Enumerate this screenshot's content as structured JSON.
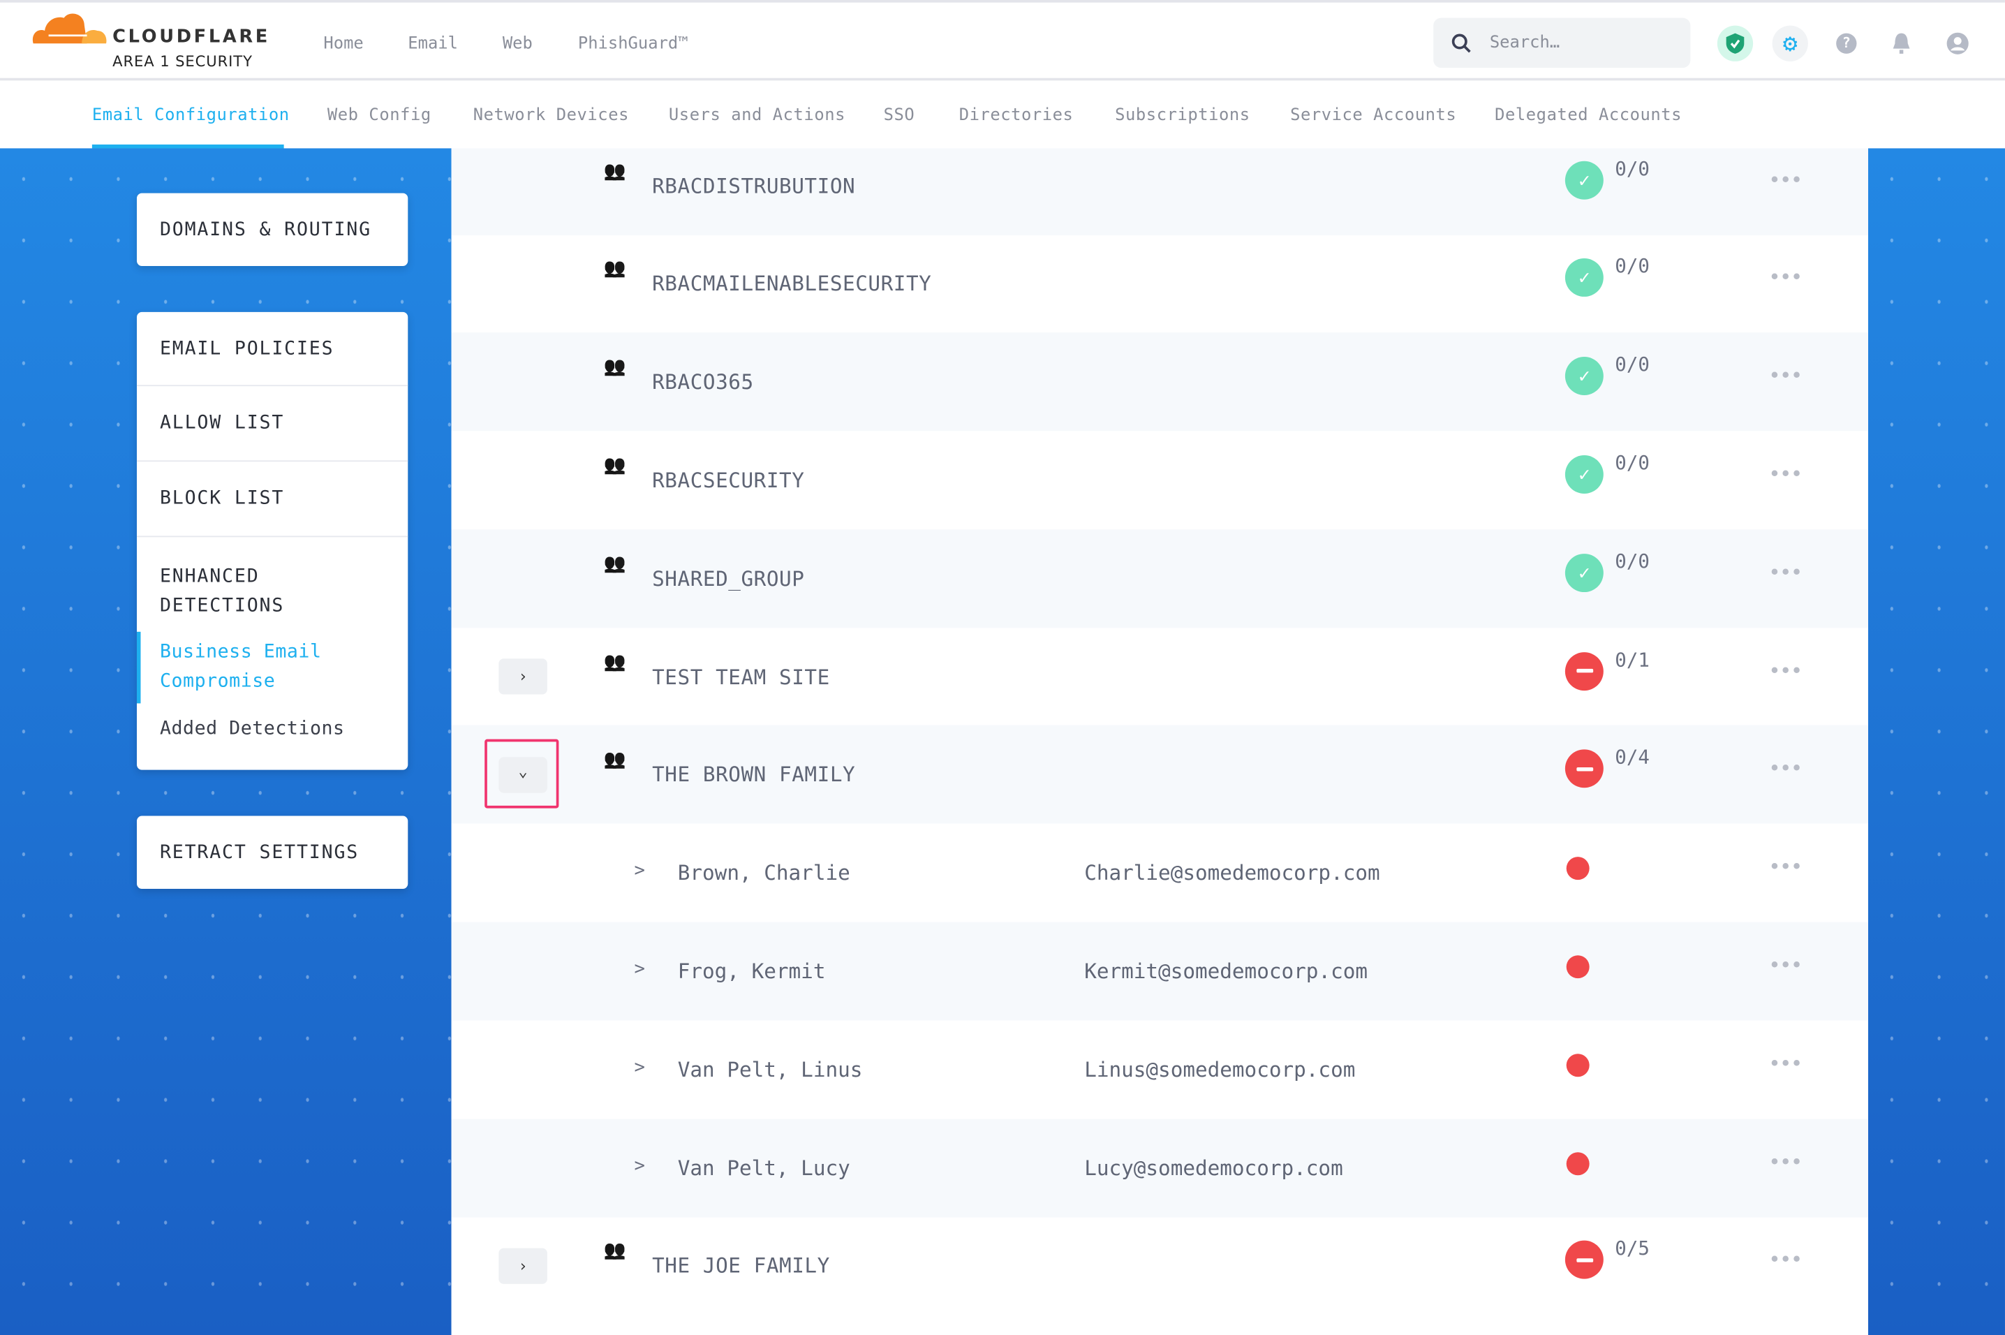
{
  "brand": {
    "name": "CLOUDFLARE",
    "sub": "AREA 1 SECURITY",
    "orange": "#f48120",
    "light_orange": "#faad3f"
  },
  "topnav": [
    "Home",
    "Email",
    "Web",
    "PhishGuard™"
  ],
  "search": {
    "placeholder": "Search…"
  },
  "header_icons": [
    "shield-check-icon",
    "gear-icon",
    "help-icon",
    "bell-icon",
    "user-icon"
  ],
  "tabs": [
    {
      "label": "Email Configuration",
      "active": true
    },
    {
      "label": "Web Config"
    },
    {
      "label": "Network Devices"
    },
    {
      "label": "Users and Actions"
    },
    {
      "label": "SSO"
    },
    {
      "label": "Directories"
    },
    {
      "label": "Subscriptions"
    },
    {
      "label": "Service Accounts"
    },
    {
      "label": "Delegated Accounts"
    }
  ],
  "sidebar": {
    "domains": "DOMAINS & ROUTING",
    "email_policies": "EMAIL POLICIES",
    "allow_list": "ALLOW LIST",
    "block_list": "BLOCK LIST",
    "enhanced": "ENHANCED DETECTIONS",
    "bec": "Business Email Compromise",
    "added": "Added Detections",
    "retract": "RETRACT SETTINGS"
  },
  "colors": {
    "accent": "#1eb0ef",
    "ok": "#6ee0b9",
    "error": "#f0484a",
    "highlight": "#f0346e"
  },
  "rows": [
    {
      "type": "group",
      "name": "RBACDISTRUBUTION",
      "status": "ok",
      "count": "0/0"
    },
    {
      "type": "group",
      "name": "RBACMAILENABLESECURITY",
      "status": "ok",
      "count": "0/0"
    },
    {
      "type": "group",
      "name": "RBACO365",
      "status": "ok",
      "count": "0/0"
    },
    {
      "type": "group",
      "name": "RBACSECURITY",
      "status": "ok",
      "count": "0/0"
    },
    {
      "type": "group",
      "name": "SHARED_GROUP",
      "status": "ok",
      "count": "0/0"
    },
    {
      "type": "group",
      "name": "TEST TEAM SITE",
      "status": "error",
      "count": "0/1",
      "expander": "collapsed"
    },
    {
      "type": "group",
      "name": "THE BROWN FAMILY",
      "status": "error",
      "count": "0/4",
      "expander": "expanded"
    },
    {
      "type": "member",
      "name": "Brown, Charlie",
      "email": "Charlie@somedemocorp.com"
    },
    {
      "type": "member",
      "name": "Frog, Kermit",
      "email": "Kermit@somedemocorp.com"
    },
    {
      "type": "member",
      "name": "Van Pelt, Linus",
      "email": "Linus@somedemocorp.com"
    },
    {
      "type": "member",
      "name": "Van Pelt, Lucy",
      "email": "Lucy@somedemocorp.com"
    },
    {
      "type": "group",
      "name": "THE JOE FAMILY",
      "status": "error",
      "count": "0/5",
      "expander": "collapsed"
    }
  ]
}
